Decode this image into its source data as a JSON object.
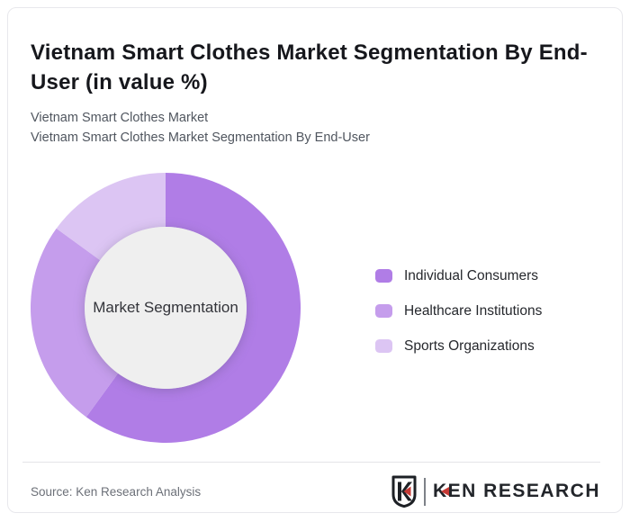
{
  "page": {
    "title": "Vietnam Smart Clothes Market Segmentation By End-User (in value %)",
    "subtitle_lines": [
      "Vietnam Smart Clothes Market",
      "Vietnam Smart Clothes Market Segmentation By End-User"
    ]
  },
  "chart_data": {
    "type": "pie",
    "variant": "donut",
    "title": "Vietnam Smart Clothes Market Segmentation By End-User (in value %)",
    "center_label": "Market Segmentation",
    "units": "% of value",
    "start_angle_deg": 0,
    "inner_radius_ratio": 0.6,
    "hole_color": "#efefef",
    "legend_position": "right",
    "series": [
      {
        "name": "Individual Consumers",
        "value": 60,
        "color": "#b07de6"
      },
      {
        "name": "Healthcare Institutions",
        "value": 25,
        "color": "#c59dec"
      },
      {
        "name": "Sports Organizations",
        "value": 15,
        "color": "#dcc5f3"
      }
    ]
  },
  "footer": {
    "source": "Source: Ken Research Analysis",
    "logo_text": "KEN RESEARCH"
  },
  "colors": {
    "title_text": "#16171c",
    "subtitle_text": "#50565f",
    "legend_text": "#26282d",
    "logo_dark": "#1d2025",
    "logo_red": "#c63a35",
    "card_border": "#e8e8ec"
  }
}
